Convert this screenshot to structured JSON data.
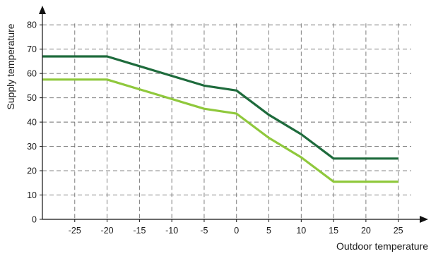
{
  "chart_data": {
    "type": "line",
    "title": "",
    "xlabel": "Outdoor temperature",
    "ylabel": "Supply temperature",
    "xlim": [
      -30,
      27
    ],
    "ylim": [
      0,
      85
    ],
    "xticks": [
      -25,
      -20,
      -15,
      -10,
      -5,
      0,
      5,
      10,
      15,
      20,
      25
    ],
    "yticks": [
      0,
      10,
      20,
      30,
      40,
      50,
      60,
      70,
      80
    ],
    "grid": true,
    "legend": "none",
    "series": [
      {
        "color": "#1e6b3c",
        "x": [
          -30,
          -20,
          -15,
          -10,
          -5,
          0,
          5,
          10,
          15,
          20,
          25
        ],
        "y": [
          67,
          67,
          63,
          59,
          55,
          53,
          43,
          35,
          25,
          25,
          25
        ]
      },
      {
        "color": "#8fc83c",
        "x": [
          -30,
          -20,
          -15,
          -10,
          -5,
          0,
          5,
          10,
          15,
          20,
          25
        ],
        "y": [
          57.5,
          57.5,
          53.5,
          49.5,
          45.5,
          43.5,
          33.5,
          25.5,
          15.5,
          15.5,
          15.5
        ]
      }
    ]
  }
}
